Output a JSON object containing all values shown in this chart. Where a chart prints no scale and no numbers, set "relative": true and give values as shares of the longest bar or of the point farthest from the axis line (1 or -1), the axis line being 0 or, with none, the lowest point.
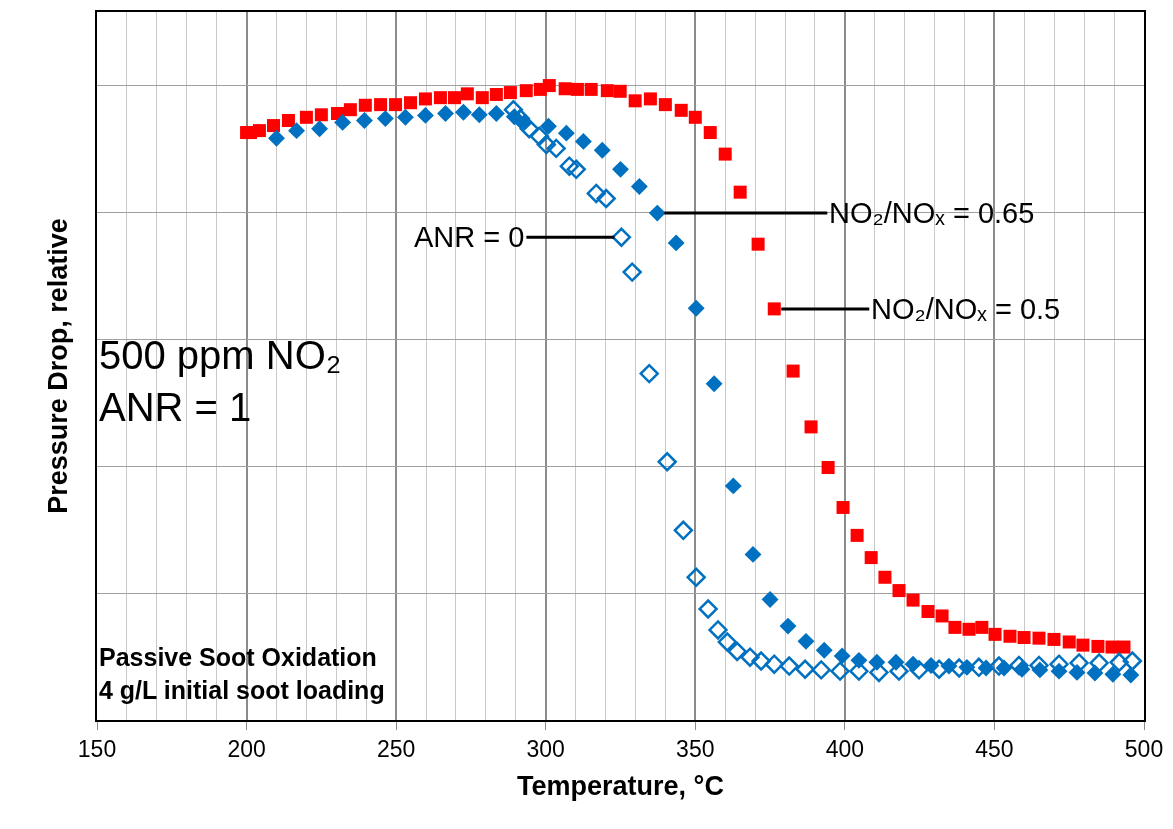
{
  "chart_data": {
    "type": "scatter",
    "relative": true,
    "xlabel": "Temperature, °C",
    "ylabel": "Pressure Drop, relative",
    "xlim": [
      150,
      500
    ],
    "xticks": [
      150,
      200,
      250,
      300,
      350,
      400,
      450,
      500
    ],
    "grid": true,
    "series": [
      {
        "color": "#ff0000",
        "marker": "square",
        "x": [
          200,
          201.3,
          204.3,
          209.0,
          214.0,
          220.0,
          225.0,
          230.4,
          234.7,
          239.7,
          244.8,
          249.8,
          254.8,
          259.8,
          264.8,
          269.5,
          273.8,
          278.8,
          283.5,
          288.2,
          293.5,
          298.2,
          301.2,
          306.5,
          310.6,
          315.2,
          320.6,
          324.9,
          329.9,
          335.0,
          340.0,
          345.3,
          350.0,
          355.0,
          360.0,
          365.0,
          371.0,
          376.4,
          382.7,
          388.7,
          394.4,
          399.4,
          404.1,
          408.8,
          413.4,
          418.1,
          422.8,
          427.8,
          432.5,
          436.8,
          441.5,
          445.8,
          450.2,
          455.2,
          459.9,
          464.9,
          469.9,
          475.0,
          479.6,
          484.6,
          489.3,
          493.3
        ],
        "values": [
          0.926,
          0.926,
          0.929,
          0.937,
          0.945,
          0.95,
          0.954,
          0.956,
          0.962,
          0.969,
          0.97,
          0.97,
          0.973,
          0.979,
          0.981,
          0.981,
          0.987,
          0.981,
          0.986,
          0.989,
          0.992,
          0.994,
          1.0,
          0.995,
          0.994,
          0.994,
          0.992,
          0.991,
          0.976,
          0.979,
          0.97,
          0.961,
          0.95,
          0.926,
          0.892,
          0.832,
          0.75,
          0.648,
          0.55,
          0.462,
          0.398,
          0.335,
          0.291,
          0.256,
          0.225,
          0.204,
          0.189,
          0.171,
          0.164,
          0.146,
          0.143,
          0.146,
          0.135,
          0.132,
          0.13,
          0.129,
          0.127,
          0.123,
          0.118,
          0.116,
          0.115,
          0.115
        ]
      },
      {
        "color": "#0070c0",
        "marker": "diamond",
        "x": [
          210.0,
          216.7,
          224.4,
          232.1,
          239.4,
          246.4,
          253.1,
          259.8,
          266.5,
          272.5,
          277.8,
          283.5,
          289.5,
          292.9,
          300.9,
          306.9,
          312.6,
          318.9,
          325.0,
          331.3,
          337.3,
          343.6,
          350.3,
          356.3,
          362.7,
          369.3,
          375.0,
          381.0,
          387.0,
          393.1,
          399.1,
          404.7,
          410.7,
          417.1,
          422.8,
          428.8,
          434.8,
          440.8,
          447.2,
          453.2,
          459.2,
          465.2,
          471.6,
          477.6,
          483.6,
          489.6,
          495.6
        ],
        "values": [
          0.917,
          0.929,
          0.932,
          0.942,
          0.945,
          0.948,
          0.95,
          0.953,
          0.956,
          0.958,
          0.954,
          0.956,
          0.951,
          0.942,
          0.936,
          0.925,
          0.912,
          0.898,
          0.868,
          0.841,
          0.799,
          0.752,
          0.649,
          0.53,
          0.369,
          0.261,
          0.19,
          0.148,
          0.124,
          0.11,
          0.101,
          0.094,
          0.091,
          0.091,
          0.088,
          0.086,
          0.085,
          0.083,
          0.082,
          0.082,
          0.08,
          0.079,
          0.077,
          0.075,
          0.074,
          0.072,
          0.071
        ]
      },
      {
        "color": "#0070c0",
        "marker": "diamond-open",
        "x": [
          289.2,
          291.5,
          294.5,
          297.9,
          300.2,
          303.5,
          307.9,
          310.2,
          316.9,
          320.2,
          325.3,
          328.9,
          334.6,
          340.6,
          346.0,
          350.3,
          354.3,
          357.6,
          360.7,
          364.0,
          368.3,
          372.0,
          376.4,
          381.4,
          386.7,
          392.1,
          398.4,
          404.7,
          411.4,
          418.1,
          424.8,
          431.5,
          438.2,
          444.8,
          451.5,
          458.2,
          464.9,
          471.6,
          478.3,
          485.0,
          491.7,
          496.1
        ],
        "values": [
          0.962,
          0.948,
          0.932,
          0.92,
          0.907,
          0.901,
          0.873,
          0.868,
          0.83,
          0.822,
          0.761,
          0.706,
          0.546,
          0.407,
          0.299,
          0.225,
          0.175,
          0.142,
          0.123,
          0.108,
          0.099,
          0.093,
          0.088,
          0.085,
          0.08,
          0.079,
          0.077,
          0.077,
          0.075,
          0.077,
          0.079,
          0.08,
          0.082,
          0.083,
          0.085,
          0.086,
          0.086,
          0.088,
          0.09,
          0.09,
          0.091,
          0.093
        ]
      }
    ],
    "annotations": [
      {
        "text": "NO₂/NOₓ = 0.65",
        "x": 337.3,
        "y": 0.799
      },
      {
        "text": "ANR = 0",
        "x": 325.3,
        "y": 0.761
      },
      {
        "text": "NO₂/NOₓ = 0.5",
        "x": 376.4,
        "y": 0.648
      },
      "500 ppm NO₂\nANR = 1",
      "Passive Soot Oxidation\n4 g/L initial soot loading"
    ]
  }
}
